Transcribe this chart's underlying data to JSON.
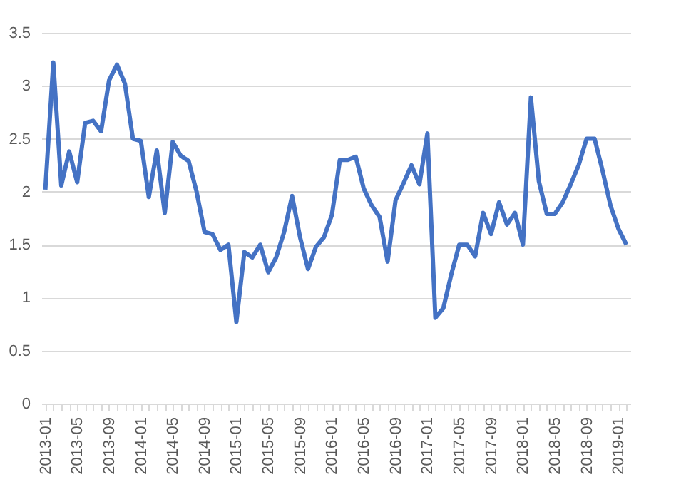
{
  "chart_data": {
    "type": "line",
    "categories": [
      "2013-01",
      null,
      null,
      null,
      "2013-05",
      null,
      null,
      null,
      "2013-09",
      null,
      null,
      null,
      "2014-01",
      null,
      null,
      null,
      "2014-05",
      null,
      null,
      null,
      "2014-09",
      null,
      null,
      null,
      "2015-01",
      null,
      null,
      null,
      "2015-05",
      null,
      null,
      null,
      "2015-09",
      null,
      null,
      null,
      "2016-01",
      null,
      null,
      null,
      "2016-05",
      null,
      null,
      null,
      "2016-09",
      null,
      null,
      null,
      "2017-01",
      null,
      null,
      null,
      "2017-05",
      null,
      null,
      null,
      "2017-09",
      null,
      null,
      null,
      "2018-01",
      null,
      null,
      null,
      "2018-05",
      null,
      null,
      null,
      "2018-09",
      null,
      null,
      null,
      "2019-01",
      null
    ],
    "series": [
      {
        "color": "#4472c4",
        "values": [
          2.02,
          3.22,
          2.06,
          2.38,
          2.09,
          2.65,
          2.67,
          2.57,
          3.05,
          3.2,
          3.02,
          2.5,
          2.48,
          1.95,
          2.39,
          1.8,
          2.47,
          2.34,
          2.29,
          2.0,
          1.62,
          1.6,
          1.45,
          1.5,
          0.77,
          1.43,
          1.38,
          1.5,
          1.24,
          1.38,
          1.62,
          1.96,
          1.57,
          1.27,
          1.48,
          1.57,
          1.78,
          2.3,
          2.3,
          2.33,
          2.03,
          1.87,
          1.76,
          1.34,
          1.92,
          2.08,
          2.25,
          2.07,
          2.55,
          0.81,
          0.9,
          1.22,
          1.5,
          1.5,
          1.39,
          1.8,
          1.6,
          1.9,
          1.69,
          1.8,
          1.5,
          2.89,
          2.1,
          1.79,
          1.79,
          1.9,
          2.07,
          2.25,
          2.5,
          2.5,
          2.2,
          1.87,
          1.65,
          1.5
        ]
      }
    ],
    "ylim": [
      0,
      3.5
    ],
    "yticks": [
      0,
      0.5,
      1,
      1.5,
      2,
      2.5,
      3,
      3.5
    ],
    "grid": "y",
    "marker": "none",
    "line_style": "solid"
  }
}
